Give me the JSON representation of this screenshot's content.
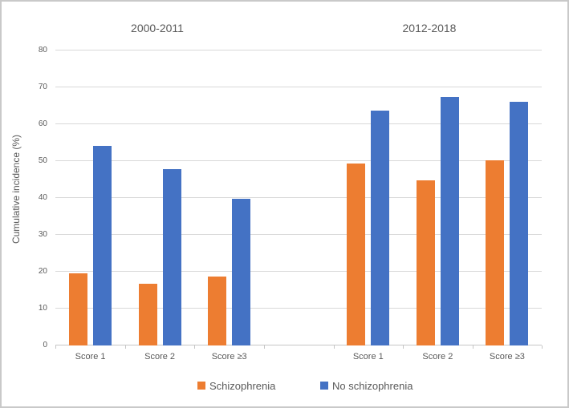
{
  "chart_data": {
    "type": "bar",
    "title": "",
    "ylabel": "Cumulative incidence (%)",
    "ylim": [
      0,
      80
    ],
    "ytick_step": 10,
    "grid": true,
    "legend_position": "bottom",
    "colors": {
      "Schizophrenia": "#ED7D31",
      "No schizophrenia": "#4472C4"
    },
    "text_color": "#595959",
    "gridline_color": "#d9d9d9",
    "groups": [
      {
        "title": "2000-2011",
        "categories": [
          "Score 1",
          "Score 2",
          "Score ≥3"
        ],
        "series": [
          {
            "name": "Schizophrenia",
            "values": [
              19.5,
              16.7,
              18.7
            ]
          },
          {
            "name": "No schizophrenia",
            "values": [
              54.0,
              47.7,
              39.7
            ]
          }
        ]
      },
      {
        "title": "2012-2018",
        "categories": [
          "Score 1",
          "Score 2",
          "Score ≥3"
        ],
        "series": [
          {
            "name": "Schizophrenia",
            "values": [
              49.3,
              44.6,
              50.1
            ]
          },
          {
            "name": "No schizophrenia",
            "values": [
              63.5,
              67.2,
              65.9
            ]
          }
        ]
      }
    ],
    "legend": [
      "Schizophrenia",
      "No schizophrenia"
    ]
  }
}
